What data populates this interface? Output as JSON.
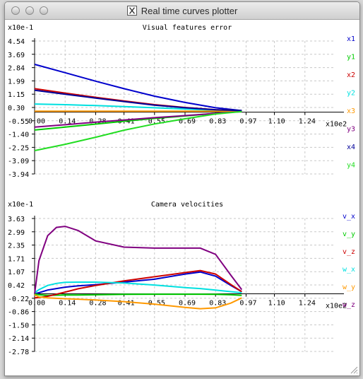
{
  "window": {
    "title": "Real time curves plotter"
  },
  "chart_data": [
    {
      "type": "line",
      "title": "Visual features error",
      "scale_label": "x10e-1",
      "x_scale_label": "x10e2",
      "y_ticks": [
        "4.54",
        "3.69",
        "2.84",
        "1.99",
        "1.15",
        "0.30",
        "-0.55",
        "-1.40",
        "-2.25",
        "-3.09",
        "-3.94"
      ],
      "x_ticks": [
        "0.00",
        "0.14",
        "0.28",
        "0.41",
        "0.55",
        "0.69",
        "0.83",
        "0.97",
        "1.10",
        "1.24"
      ],
      "ylim": [
        -3.94,
        4.54
      ],
      "xlim": [
        0,
        1.38
      ],
      "grid": true,
      "legend_position": "right",
      "x": [
        0.0,
        0.14,
        0.28,
        0.41,
        0.55,
        0.69,
        0.83,
        0.95
      ],
      "series": [
        {
          "name": "x1",
          "color": "#0000cc",
          "values": [
            3.05,
            2.52,
            1.98,
            1.5,
            1.02,
            0.62,
            0.28,
            0.1
          ]
        },
        {
          "name": "y1",
          "color": "#00cc00",
          "values": [
            -1.14,
            -0.95,
            -0.76,
            -0.58,
            -0.4,
            -0.24,
            -0.08,
            0.05
          ]
        },
        {
          "name": "x2",
          "color": "#cc0000",
          "values": [
            1.5,
            1.22,
            0.95,
            0.72,
            0.48,
            0.3,
            0.16,
            0.1
          ]
        },
        {
          "name": "y2",
          "color": "#00e0e0",
          "values": [
            0.52,
            0.48,
            0.42,
            0.36,
            0.28,
            0.2,
            0.12,
            0.1
          ]
        },
        {
          "name": "x3",
          "color": "#ff9900",
          "values": [
            0.06,
            0.06,
            0.06,
            0.06,
            0.06,
            0.06,
            0.06,
            0.06
          ]
        },
        {
          "name": "y3",
          "color": "#800080",
          "values": [
            -0.95,
            -0.8,
            -0.64,
            -0.5,
            -0.35,
            -0.22,
            -0.08,
            0.04
          ]
        },
        {
          "name": "x4",
          "color": "#000099",
          "values": [
            1.4,
            1.15,
            0.9,
            0.68,
            0.45,
            0.28,
            0.15,
            0.1
          ]
        },
        {
          "name": "y4",
          "color": "#22dd22",
          "values": [
            -2.45,
            -2.05,
            -1.6,
            -1.15,
            -0.75,
            -0.42,
            -0.12,
            0.04
          ]
        }
      ]
    },
    {
      "type": "line",
      "title": "Camera velocities",
      "scale_label": "x10e-1",
      "x_scale_label": "x10e2",
      "y_ticks": [
        "3.63",
        "2.99",
        "2.35",
        "1.71",
        "1.07",
        "0.42",
        "-0.22",
        "-0.86",
        "-1.50",
        "-2.14",
        "-2.78"
      ],
      "x_ticks": [
        "0.00",
        "0.14",
        "0.28",
        "0.41",
        "0.55",
        "0.69",
        "0.83",
        "0.97",
        "1.10",
        "1.24"
      ],
      "ylim": [
        -2.78,
        3.63
      ],
      "xlim": [
        0,
        1.38
      ],
      "grid": true,
      "legend_position": "right",
      "x": [
        0.0,
        0.02,
        0.06,
        0.1,
        0.14,
        0.2,
        0.28,
        0.41,
        0.55,
        0.69,
        0.76,
        0.83,
        0.9,
        0.95
      ],
      "series": [
        {
          "name": "v_x",
          "color": "#0000cc",
          "values": [
            0.0,
            0.05,
            0.18,
            0.25,
            0.32,
            0.38,
            0.44,
            0.56,
            0.7,
            0.95,
            1.05,
            0.85,
            0.4,
            0.1
          ]
        },
        {
          "name": "v_y",
          "color": "#00cc00",
          "values": [
            0.0,
            -0.05,
            -0.08,
            -0.07,
            -0.06,
            -0.06,
            -0.05,
            -0.03,
            -0.02,
            -0.02,
            -0.02,
            -0.03,
            -0.05,
            -0.08
          ]
        },
        {
          "name": "v_z",
          "color": "#cc0000",
          "values": [
            -0.2,
            -0.18,
            -0.12,
            -0.02,
            0.08,
            0.24,
            0.4,
            0.62,
            0.82,
            1.02,
            1.12,
            0.95,
            0.45,
            0.1
          ]
        },
        {
          "name": "w_x",
          "color": "#00e0e0",
          "values": [
            0.05,
            0.2,
            0.4,
            0.5,
            0.55,
            0.56,
            0.56,
            0.52,
            0.42,
            0.3,
            0.25,
            0.18,
            0.1,
            0.05
          ]
        },
        {
          "name": "w_y",
          "color": "#ff9900",
          "values": [
            -0.05,
            -0.15,
            -0.2,
            -0.22,
            -0.24,
            -0.26,
            -0.3,
            -0.38,
            -0.5,
            -0.66,
            -0.72,
            -0.68,
            -0.45,
            -0.2
          ]
        },
        {
          "name": "w_z",
          "color": "#800080",
          "values": [
            0.0,
            1.6,
            2.8,
            3.2,
            3.25,
            3.05,
            2.55,
            2.25,
            2.2,
            2.2,
            2.2,
            1.9,
            0.9,
            0.2
          ]
        }
      ]
    }
  ]
}
